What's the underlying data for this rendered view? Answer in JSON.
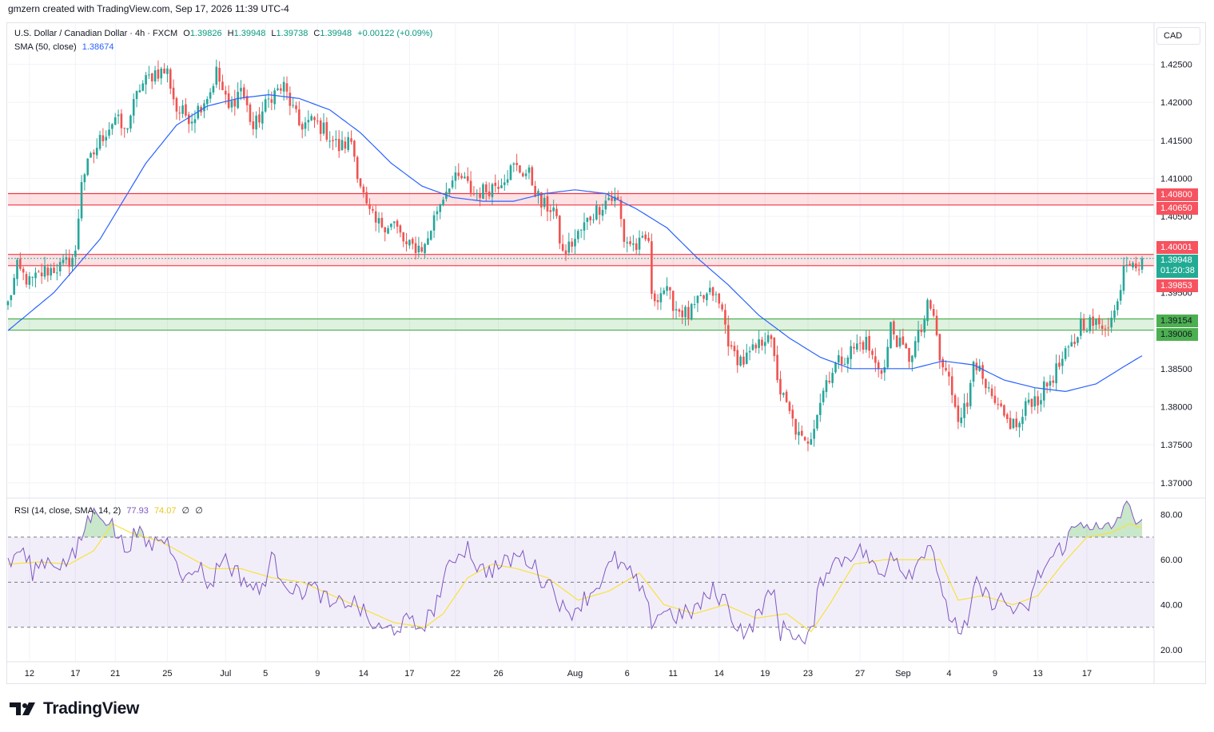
{
  "header": {
    "credit": "gmzern created with TradingView.com, Sep 17, 2026 11:39 UTC-4"
  },
  "legend": {
    "symbol": "U.S. Dollar / Canadian Dollar · 4h · FXCM",
    "o_label": "O",
    "o_value": "1.39826",
    "h_label": "H",
    "h_value": "1.39948",
    "l_label": "L",
    "l_value": "1.39738",
    "c_label": "C",
    "c_value": "1.39948",
    "change": "+0.00122 (+0.09%)",
    "sma_label": "SMA (50, close)",
    "sma_value": "1.38674",
    "rsi_label": "RSI (14, close, SMA, 14, 2)",
    "rsi_value": "77.93",
    "rsi_ma_value": "74.07",
    "rsi_extra_1": "∅",
    "rsi_extra_2": "∅"
  },
  "currency": "CAD",
  "logo": {
    "text": "TradingView"
  },
  "tags": {
    "zone1_top": "1.40800",
    "zone1_bottom": "1.40650",
    "zone2_top": "1.40001",
    "current_price": "1.39948",
    "countdown": "01:20:38",
    "zone2_bottom": "1.39853",
    "zone3_top": "1.39154",
    "zone3_bottom": "1.39006"
  },
  "colors": {
    "up": "#26a69a",
    "down": "#ef5350",
    "sma": "#2962ff",
    "rsi": "#7e57c2",
    "rsi_ma": "#f7e23d",
    "zone_red": "#f23645",
    "zone_green": "#4caf50",
    "tag_red": "#f7525f",
    "tag_green": "#22ab94",
    "grid": "#f0f3fa"
  },
  "chart_data": {
    "type": "candlestick",
    "timeframe": "4h",
    "symbol": "USDCAD",
    "price_axis_ticks": [
      1.425,
      1.42,
      1.415,
      1.41,
      1.405,
      1.395,
      1.385,
      1.38,
      1.375,
      1.37
    ],
    "price_axis_tick_labels": [
      "1.42500",
      "1.42000",
      "1.41500",
      "1.41000",
      "1.40500",
      "1.39500",
      "1.38500",
      "1.38000",
      "1.37500",
      "1.37000"
    ],
    "price_range": [
      1.3682,
      1.4305
    ],
    "rsi_axis_ticks": [
      80,
      60,
      40,
      20
    ],
    "rsi_axis_tick_labels": [
      "80.00",
      "60.00",
      "40.00",
      "20.00"
    ],
    "rsi_range": [
      15,
      87
    ],
    "rsi_levels": [
      70,
      50,
      30
    ],
    "x_ticks": [
      {
        "i": 7,
        "label": "12"
      },
      {
        "i": 22,
        "label": "17"
      },
      {
        "i": 35,
        "label": "21"
      },
      {
        "i": 52,
        "label": "25"
      },
      {
        "i": 71,
        "label": "Jul"
      },
      {
        "i": 84,
        "label": "5"
      },
      {
        "i": 101,
        "label": "9"
      },
      {
        "i": 116,
        "label": "14"
      },
      {
        "i": 131,
        "label": "17"
      },
      {
        "i": 146,
        "label": "22"
      },
      {
        "i": 160,
        "label": "26"
      },
      {
        "i": 185,
        "label": "Aug"
      },
      {
        "i": 202,
        "label": "6"
      },
      {
        "i": 217,
        "label": "11"
      },
      {
        "i": 232,
        "label": "14"
      },
      {
        "i": 247,
        "label": "19"
      },
      {
        "i": 261,
        "label": "23"
      },
      {
        "i": 278,
        "label": "27"
      },
      {
        "i": 292,
        "label": "Sep"
      },
      {
        "i": 307,
        "label": "4"
      },
      {
        "i": 322,
        "label": "9"
      },
      {
        "i": 336,
        "label": "13"
      },
      {
        "i": 352,
        "label": "17"
      }
    ],
    "close_keypoints": [
      [
        0,
        1.3935
      ],
      [
        3,
        1.3982
      ],
      [
        7,
        1.3963
      ],
      [
        12,
        1.3978
      ],
      [
        18,
        1.3985
      ],
      [
        22,
        1.4
      ],
      [
        24,
        1.41
      ],
      [
        30,
        1.415
      ],
      [
        35,
        1.418
      ],
      [
        38,
        1.416
      ],
      [
        43,
        1.422
      ],
      [
        48,
        1.424
      ],
      [
        52,
        1.424
      ],
      [
        55,
        1.419
      ],
      [
        60,
        1.418
      ],
      [
        66,
        1.4215
      ],
      [
        68,
        1.424
      ],
      [
        72,
        1.419
      ],
      [
        76,
        1.422
      ],
      [
        80,
        1.4165
      ],
      [
        86,
        1.421
      ],
      [
        90,
        1.422
      ],
      [
        95,
        1.417
      ],
      [
        100,
        1.4175
      ],
      [
        104,
        1.416
      ],
      [
        108,
        1.414
      ],
      [
        112,
        1.415
      ],
      [
        114,
        1.411
      ],
      [
        117,
        1.406
      ],
      [
        120,
        1.404
      ],
      [
        126,
        1.404
      ],
      [
        130,
        1.401
      ],
      [
        136,
        1.401
      ],
      [
        140,
        1.406
      ],
      [
        144,
        1.4095
      ],
      [
        148,
        1.41
      ],
      [
        152,
        1.408
      ],
      [
        156,
        1.4085
      ],
      [
        160,
        1.4095
      ],
      [
        165,
        1.4115
      ],
      [
        170,
        1.4105
      ],
      [
        174,
        1.4065
      ],
      [
        178,
        1.406
      ],
      [
        181,
        1.4
      ],
      [
        185,
        1.402
      ],
      [
        190,
        1.405
      ],
      [
        196,
        1.4075
      ],
      [
        199,
        1.407
      ],
      [
        201,
        1.402
      ],
      [
        205,
        1.401
      ],
      [
        209,
        1.402
      ],
      [
        210,
        1.394
      ],
      [
        214,
        1.3955
      ],
      [
        218,
        1.393
      ],
      [
        222,
        1.392
      ],
      [
        226,
        1.394
      ],
      [
        230,
        1.395
      ],
      [
        233,
        1.3925
      ],
      [
        236,
        1.387
      ],
      [
        240,
        1.386
      ],
      [
        245,
        1.388
      ],
      [
        248,
        1.39
      ],
      [
        250,
        1.386
      ],
      [
        252,
        1.382
      ],
      [
        255,
        1.379
      ],
      [
        258,
        1.376
      ],
      [
        260,
        1.375
      ],
      [
        262,
        1.3765
      ],
      [
        264,
        1.3795
      ],
      [
        267,
        1.3835
      ],
      [
        270,
        1.3855
      ],
      [
        274,
        1.387
      ],
      [
        277,
        1.388
      ],
      [
        280,
        1.3885
      ],
      [
        283,
        1.3855
      ],
      [
        286,
        1.385
      ],
      [
        288,
        1.3905
      ],
      [
        291,
        1.388
      ],
      [
        294,
        1.3865
      ],
      [
        298,
        1.39
      ],
      [
        300,
        1.393
      ],
      [
        302,
        1.392
      ],
      [
        304,
        1.386
      ],
      [
        307,
        1.3835
      ],
      [
        310,
        1.379
      ],
      [
        313,
        1.38
      ],
      [
        315,
        1.387
      ],
      [
        318,
        1.383
      ],
      [
        322,
        1.38
      ],
      [
        326,
        1.378
      ],
      [
        330,
        1.3775
      ],
      [
        333,
        1.381
      ],
      [
        336,
        1.381
      ],
      [
        340,
        1.3835
      ],
      [
        344,
        1.386
      ],
      [
        348,
        1.3885
      ],
      [
        350,
        1.391
      ],
      [
        353,
        1.391
      ],
      [
        356,
        1.3905
      ],
      [
        360,
        1.3915
      ],
      [
        362,
        1.3935
      ],
      [
        364,
        1.399
      ],
      [
        367,
        1.3996
      ],
      [
        369,
        1.3985
      ],
      [
        370,
        1.3995
      ]
    ],
    "sma50_keypoints": [
      [
        0,
        1.39
      ],
      [
        15,
        1.395
      ],
      [
        30,
        1.402
      ],
      [
        45,
        1.412
      ],
      [
        55,
        1.417
      ],
      [
        65,
        1.4195
      ],
      [
        75,
        1.4205
      ],
      [
        85,
        1.421
      ],
      [
        95,
        1.4205
      ],
      [
        105,
        1.419
      ],
      [
        115,
        1.416
      ],
      [
        125,
        1.412
      ],
      [
        135,
        1.409
      ],
      [
        145,
        1.4075
      ],
      [
        155,
        1.407
      ],
      [
        165,
        1.407
      ],
      [
        175,
        1.408
      ],
      [
        185,
        1.4085
      ],
      [
        195,
        1.408
      ],
      [
        205,
        1.406
      ],
      [
        215,
        1.4035
      ],
      [
        225,
        1.3995
      ],
      [
        235,
        1.396
      ],
      [
        245,
        1.392
      ],
      [
        255,
        1.389
      ],
      [
        265,
        1.3865
      ],
      [
        275,
        1.385
      ],
      [
        285,
        1.385
      ],
      [
        295,
        1.385
      ],
      [
        305,
        1.386
      ],
      [
        315,
        1.3855
      ],
      [
        325,
        1.3835
      ],
      [
        335,
        1.3825
      ],
      [
        345,
        1.382
      ],
      [
        355,
        1.383
      ],
      [
        365,
        1.3855
      ],
      [
        370,
        1.3867
      ]
    ],
    "rsi_keypoints": [
      [
        0,
        57
      ],
      [
        4,
        65
      ],
      [
        8,
        55
      ],
      [
        12,
        60
      ],
      [
        18,
        58
      ],
      [
        22,
        62
      ],
      [
        26,
        78
      ],
      [
        30,
        82
      ],
      [
        34,
        75
      ],
      [
        38,
        65
      ],
      [
        42,
        72
      ],
      [
        46,
        66
      ],
      [
        50,
        70
      ],
      [
        54,
        65
      ],
      [
        58,
        50
      ],
      [
        62,
        58
      ],
      [
        66,
        48
      ],
      [
        70,
        62
      ],
      [
        74,
        55
      ],
      [
        78,
        50
      ],
      [
        82,
        45
      ],
      [
        86,
        60
      ],
      [
        90,
        52
      ],
      [
        94,
        45
      ],
      [
        98,
        48
      ],
      [
        102,
        45
      ],
      [
        106,
        38
      ],
      [
        110,
        42
      ],
      [
        114,
        40
      ],
      [
        118,
        32
      ],
      [
        122,
        28
      ],
      [
        126,
        30
      ],
      [
        130,
        32
      ],
      [
        134,
        30
      ],
      [
        138,
        35
      ],
      [
        142,
        50
      ],
      [
        146,
        62
      ],
      [
        150,
        66
      ],
      [
        154,
        55
      ],
      [
        158,
        56
      ],
      [
        162,
        58
      ],
      [
        166,
        62
      ],
      [
        170,
        60
      ],
      [
        174,
        52
      ],
      [
        178,
        48
      ],
      [
        182,
        35
      ],
      [
        186,
        40
      ],
      [
        190,
        45
      ],
      [
        194,
        52
      ],
      [
        198,
        60
      ],
      [
        202,
        55
      ],
      [
        206,
        48
      ],
      [
        210,
        33
      ],
      [
        214,
        38
      ],
      [
        218,
        35
      ],
      [
        222,
        36
      ],
      [
        226,
        40
      ],
      [
        230,
        46
      ],
      [
        234,
        42
      ],
      [
        238,
        30
      ],
      [
        242,
        28
      ],
      [
        246,
        40
      ],
      [
        250,
        45
      ],
      [
        252,
        28
      ],
      [
        255,
        30
      ],
      [
        258,
        25
      ],
      [
        260,
        22
      ],
      [
        262,
        27
      ],
      [
        265,
        50
      ],
      [
        268,
        58
      ],
      [
        272,
        60
      ],
      [
        276,
        64
      ],
      [
        280,
        63
      ],
      [
        283,
        55
      ],
      [
        286,
        52
      ],
      [
        288,
        66
      ],
      [
        292,
        55
      ],
      [
        296,
        56
      ],
      [
        300,
        68
      ],
      [
        302,
        65
      ],
      [
        305,
        40
      ],
      [
        308,
        34
      ],
      [
        311,
        28
      ],
      [
        313,
        30
      ],
      [
        316,
        50
      ],
      [
        320,
        42
      ],
      [
        324,
        42
      ],
      [
        328,
        38
      ],
      [
        332,
        36
      ],
      [
        336,
        52
      ],
      [
        340,
        60
      ],
      [
        344,
        66
      ],
      [
        348,
        74
      ],
      [
        352,
        78
      ],
      [
        356,
        72
      ],
      [
        360,
        74
      ],
      [
        362,
        78
      ],
      [
        364,
        84
      ],
      [
        367,
        80
      ],
      [
        370,
        78
      ]
    ],
    "rsi_ma_keypoints": [
      [
        0,
        58
      ],
      [
        10,
        59
      ],
      [
        20,
        58
      ],
      [
        28,
        64
      ],
      [
        34,
        76
      ],
      [
        40,
        72
      ],
      [
        50,
        68
      ],
      [
        58,
        62
      ],
      [
        66,
        56
      ],
      [
        76,
        56
      ],
      [
        86,
        52
      ],
      [
        96,
        50
      ],
      [
        106,
        44
      ],
      [
        116,
        38
      ],
      [
        126,
        32
      ],
      [
        136,
        30
      ],
      [
        142,
        36
      ],
      [
        150,
        52
      ],
      [
        158,
        58
      ],
      [
        166,
        56
      ],
      [
        176,
        52
      ],
      [
        186,
        42
      ],
      [
        196,
        46
      ],
      [
        206,
        54
      ],
      [
        214,
        40
      ],
      [
        224,
        36
      ],
      [
        234,
        40
      ],
      [
        244,
        34
      ],
      [
        254,
        36
      ],
      [
        262,
        28
      ],
      [
        268,
        40
      ],
      [
        276,
        58
      ],
      [
        286,
        60
      ],
      [
        296,
        60
      ],
      [
        304,
        60
      ],
      [
        310,
        42
      ],
      [
        318,
        44
      ],
      [
        328,
        40
      ],
      [
        336,
        44
      ],
      [
        344,
        58
      ],
      [
        352,
        70
      ],
      [
        360,
        72
      ],
      [
        366,
        76
      ],
      [
        370,
        74
      ]
    ],
    "zones": [
      {
        "name": "resistance-upper",
        "top": 1.408,
        "bottom": 1.4065,
        "color": "red"
      },
      {
        "name": "resistance-lower",
        "top": 1.40001,
        "bottom": 1.39853,
        "color": "red"
      },
      {
        "name": "support",
        "top": 1.39154,
        "bottom": 1.39006,
        "color": "green"
      }
    ],
    "current_price": 1.39948
  }
}
